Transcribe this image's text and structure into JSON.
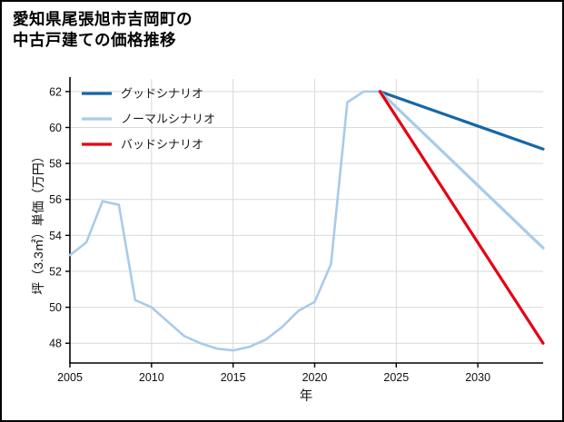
{
  "page": {
    "title_lines": [
      "愛知県尾張旭市吉岡町の",
      "中古戸建ての価格推移"
    ]
  },
  "chart_data": {
    "type": "line",
    "title": "愛知県尾張旭市吉岡町の中古戸建ての価格推移",
    "xlabel": "年",
    "ylabel": "坪（3.3㎡）単価（万円）",
    "xlim": [
      2005,
      2034
    ],
    "ylim": [
      46.9,
      62.7
    ],
    "xticks": [
      2005,
      2010,
      2015,
      2020,
      2025,
      2030
    ],
    "yticks": [
      48,
      50,
      52,
      54,
      56,
      58,
      60,
      62
    ],
    "grid": true,
    "legend_position": "upper left",
    "colors": {
      "good": "#1568a5",
      "normal": "#a8cbe9",
      "bad": "#e60012",
      "grid": "#d9d9d9",
      "axis": "#000000"
    },
    "series": [
      {
        "id": "history",
        "legend": false,
        "color": "#a8cbe9",
        "width": 2.6,
        "x": [
          2005,
          2006,
          2007,
          2008,
          2009,
          2010,
          2011,
          2012,
          2013,
          2014,
          2015,
          2016,
          2017,
          2018,
          2019,
          2020,
          2021,
          2022,
          2023,
          2024
        ],
        "values": [
          52.9,
          53.6,
          55.9,
          55.7,
          50.4,
          50.0,
          49.2,
          48.4,
          48.0,
          47.7,
          47.6,
          47.8,
          48.2,
          48.9,
          49.8,
          50.3,
          52.4,
          61.4,
          62.0,
          62.0
        ]
      },
      {
        "id": "good",
        "name": "グッドシナリオ",
        "legend": true,
        "color": "#1568a5",
        "width": 3.2,
        "x": [
          2024,
          2034
        ],
        "values": [
          62.0,
          58.8
        ]
      },
      {
        "id": "normal",
        "name": "ノーマルシナリオ",
        "legend": true,
        "color": "#a8cbe9",
        "width": 3.2,
        "x": [
          2024,
          2034
        ],
        "values": [
          62.0,
          53.3
        ]
      },
      {
        "id": "bad",
        "name": "バッドシナリオ",
        "legend": true,
        "color": "#e60012",
        "width": 3.2,
        "x": [
          2024,
          2034
        ],
        "values": [
          62.0,
          48.0
        ]
      }
    ]
  }
}
